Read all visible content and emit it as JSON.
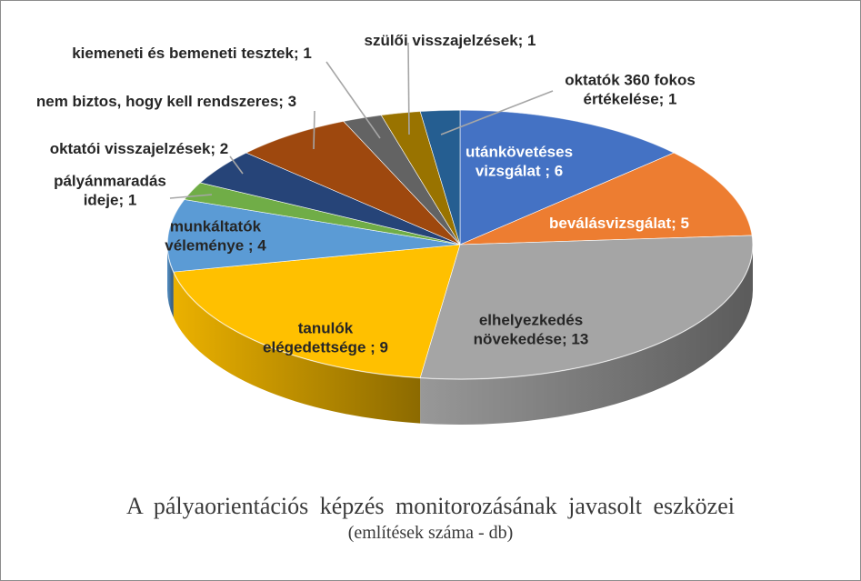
{
  "chart_data": {
    "type": "pie",
    "title": "A pályaorientációs képzés monitorozásának javasolt eszközei",
    "subtitle": "(említések száma - db)",
    "slices": [
      {
        "label": "utánkövetéses vizsgálat",
        "value": 6,
        "color": "#4472c4",
        "text": [
          "utánkövetéses",
          "vizsgálat ; 6"
        ]
      },
      {
        "label": "beválásvizsgálat",
        "value": 5,
        "color": "#ed7d31",
        "text": [
          "beválásvizsgálat; 5"
        ]
      },
      {
        "label": "elhelyezkedés növekedése",
        "value": 13,
        "color": "#a5a5a5",
        "text": [
          "elhelyezkedés",
          "növekedése; 13"
        ]
      },
      {
        "label": "tanulók elégedettsége",
        "value": 9,
        "color": "#ffc000",
        "text": [
          "tanulók",
          "elégedettsége ; 9"
        ]
      },
      {
        "label": "munkáltatók véleménye",
        "value": 4,
        "color": "#5b9bd5",
        "text": [
          "munkáltatók",
          "véleménye ; 4"
        ]
      },
      {
        "label": "pályánmaradás ideje",
        "value": 1,
        "color": "#70ad47",
        "text": [
          "pályánmaradás",
          "ideje; 1"
        ]
      },
      {
        "label": "oktatói visszajelzések",
        "value": 2,
        "color": "#264478",
        "text": [
          "oktatói visszajelzések; 2"
        ]
      },
      {
        "label": "nem biztos, hogy kell rendszeres",
        "value": 3,
        "color": "#9e480e",
        "text": [
          "nem biztos, hogy kell rendszeres; 3"
        ]
      },
      {
        "label": "kiemeneti és bemeneti tesztek",
        "value": 1,
        "color": "#636363",
        "text": [
          "kiemeneti és bemeneti tesztek; 1"
        ]
      },
      {
        "label": "szülői visszajelzések",
        "value": 1,
        "color": "#997300",
        "text": [
          "szülői visszajelzések; 1"
        ]
      },
      {
        "label": "oktatók 360 fokos értékelése",
        "value": 1,
        "color": "#255e91",
        "text": [
          "oktatók 360 fokos",
          "értékelése; 1"
        ]
      }
    ]
  }
}
